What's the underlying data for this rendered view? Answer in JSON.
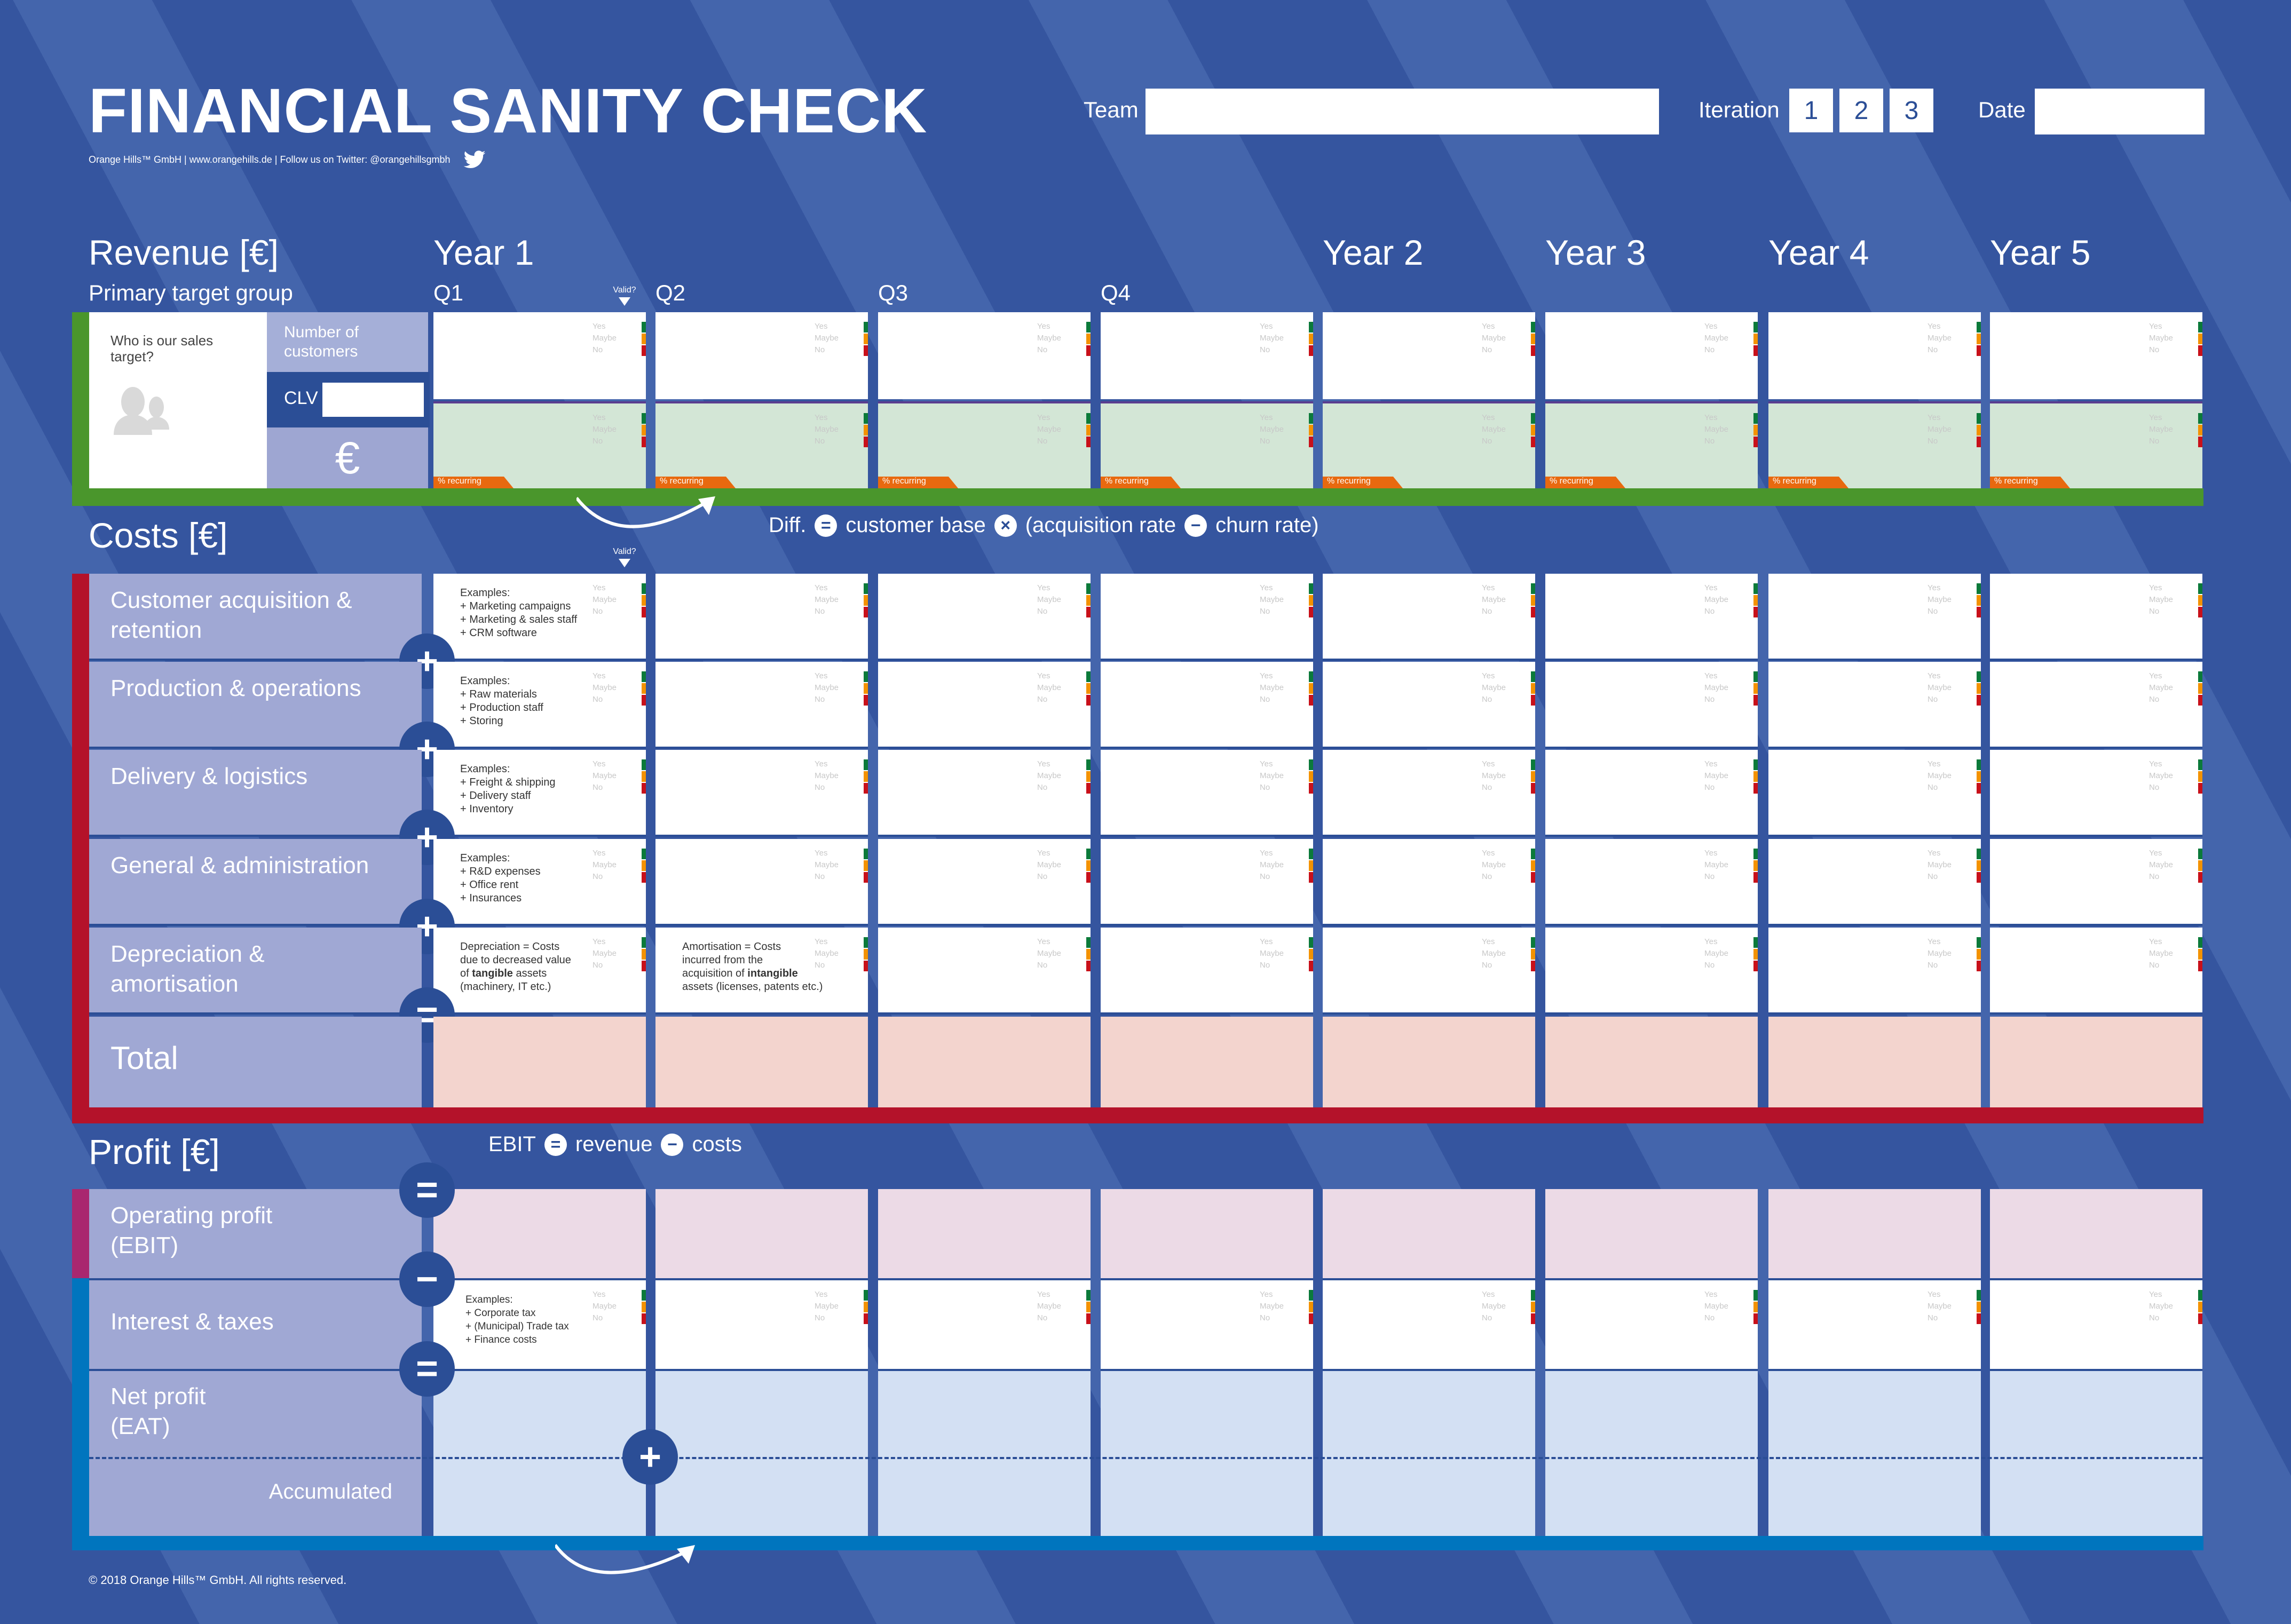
{
  "header": {
    "title": "FINANCIAL SANITY CHECK",
    "subline": "Orange Hills™ GmbH | www.orangehills.de | Follow us on Twitter: @orangehillsgmbh",
    "team_label": "Team",
    "team_value": "",
    "iteration_label": "Iteration",
    "iterations": [
      "1",
      "2",
      "3"
    ],
    "date_label": "Date",
    "date_value": ""
  },
  "columns": {
    "years": [
      "Year 1",
      "Year 2",
      "Year 3",
      "Year 4",
      "Year 5"
    ],
    "quarters": [
      "Q1",
      "Q2",
      "Q3",
      "Q4"
    ],
    "valid_label": "Valid?"
  },
  "validity": {
    "yes": "Yes",
    "maybe": "Maybe",
    "no": "No",
    "colors": {
      "yes": "#0b7a3a",
      "maybe": "#f39200",
      "no": "#c8101a"
    }
  },
  "revenue": {
    "title": "Revenue [€]",
    "subtitle": "Primary target group",
    "target_prompt": "Who is our sales target?",
    "number_of_customers": "Number of customers",
    "clv_label": "CLV",
    "clv_value": "",
    "euro_symbol": "€",
    "recurring_label": "% recurring",
    "formula": {
      "diff": "Diff.",
      "customer_base": "customer base",
      "acquisition": "(acquisition rate",
      "churn": "churn rate)",
      "op_eq": "=",
      "op_times": "×",
      "op_minus": "−"
    }
  },
  "costs": {
    "title": "Costs [€]",
    "rows": [
      {
        "label": "Customer acquisition & retention",
        "example": "Examples:\n+ Marketing campaigns\n+ Marketing & sales staff\n+ CRM software",
        "op": "+"
      },
      {
        "label": "Production & operations",
        "example": "Examples:\n+ Raw materials\n+ Production staff\n+ Storing",
        "op": "+"
      },
      {
        "label": "Delivery & logistics",
        "example": "Examples:\n+ Freight & shipping\n+ Delivery staff\n+ Inventory",
        "op": "+"
      },
      {
        "label": "General & administration",
        "example": "Examples:\n+ R&D expenses\n+ Office rent\n+ Insurances",
        "op": "+"
      },
      {
        "label": "Depreciation & amortisation",
        "example": "Depreciation = Costs\ndue to decreased value\nof tangible assets\n(machinery, IT etc.)",
        "example2": "Amortisation = Costs\nincurred from the\nacquisition of intangible\nassets (licenses, patents etc.)",
        "op": "="
      }
    ],
    "total_label": "Total"
  },
  "profit": {
    "title": "Profit [€]",
    "formula": {
      "ebit": "EBIT",
      "revenue": "revenue",
      "costs": "costs",
      "op_eq": "=",
      "op_minus": "−"
    },
    "rows": [
      {
        "label": "Operating profit (EBIT)",
        "op": "="
      },
      {
        "label": "Interest & taxes",
        "example": "Examples:\n+ Corporate tax\n+ (Municipal) Trade tax\n+ Finance costs",
        "op": "−"
      },
      {
        "label": "Net profit (EAT)",
        "op": "="
      }
    ],
    "accumulated_label": "Accumulated",
    "accumulate_op": "+"
  },
  "footer": {
    "copyright": "© 2018 Orange Hills™ GmbH. All rights reserved."
  },
  "colors": {
    "background": "#35559f",
    "revenue_accent": "#4a962c",
    "costs_accent": "#b4122a",
    "ebit_accent": "#a9276f",
    "netprofit_accent": "#0075be",
    "recurring": "#e8690f"
  }
}
